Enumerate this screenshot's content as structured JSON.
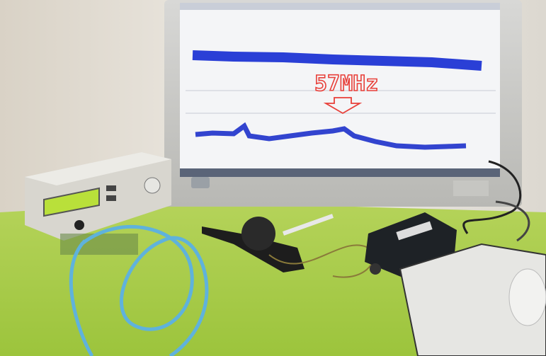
{
  "annotation": "57MHz"
}
